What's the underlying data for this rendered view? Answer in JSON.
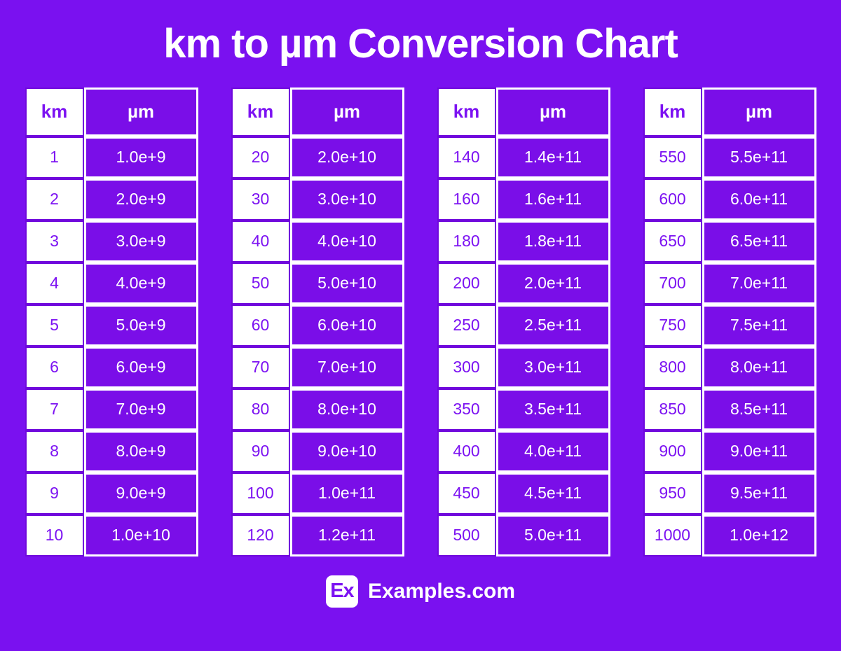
{
  "header": {
    "title": "km to µm Conversion Chart"
  },
  "footer": {
    "logo_text": "Ex",
    "site_name": "Examples.com"
  },
  "colors": {
    "page_background": "#7A11F0",
    "cell_purple": "#7A0EE8",
    "separator_purple": "#6F09DC",
    "km_text_purple": "#7C12F2",
    "text_white": "#FFFFFF"
  },
  "chart_data": {
    "type": "table",
    "title": "km to µm Conversion Chart",
    "columns": [
      "km",
      "µm"
    ],
    "tables": [
      {
        "rows": [
          [
            "1",
            "1.0e+9"
          ],
          [
            "2",
            "2.0e+9"
          ],
          [
            "3",
            "3.0e+9"
          ],
          [
            "4",
            "4.0e+9"
          ],
          [
            "5",
            "5.0e+9"
          ],
          [
            "6",
            "6.0e+9"
          ],
          [
            "7",
            "7.0e+9"
          ],
          [
            "8",
            "8.0e+9"
          ],
          [
            "9",
            "9.0e+9"
          ],
          [
            "10",
            "1.0e+10"
          ]
        ]
      },
      {
        "rows": [
          [
            "20",
            "2.0e+10"
          ],
          [
            "30",
            "3.0e+10"
          ],
          [
            "40",
            "4.0e+10"
          ],
          [
            "50",
            "5.0e+10"
          ],
          [
            "60",
            "6.0e+10"
          ],
          [
            "70",
            "7.0e+10"
          ],
          [
            "80",
            "8.0e+10"
          ],
          [
            "90",
            "9.0e+10"
          ],
          [
            "100",
            "1.0e+11"
          ],
          [
            "120",
            "1.2e+11"
          ]
        ]
      },
      {
        "rows": [
          [
            "140",
            "1.4e+11"
          ],
          [
            "160",
            "1.6e+11"
          ],
          [
            "180",
            "1.8e+11"
          ],
          [
            "200",
            "2.0e+11"
          ],
          [
            "250",
            "2.5e+11"
          ],
          [
            "300",
            "3.0e+11"
          ],
          [
            "350",
            "3.5e+11"
          ],
          [
            "400",
            "4.0e+11"
          ],
          [
            "450",
            "4.5e+11"
          ],
          [
            "500",
            "5.0e+11"
          ]
        ]
      },
      {
        "rows": [
          [
            "550",
            "5.5e+11"
          ],
          [
            "600",
            "6.0e+11"
          ],
          [
            "650",
            "6.5e+11"
          ],
          [
            "700",
            "7.0e+11"
          ],
          [
            "750",
            "7.5e+11"
          ],
          [
            "800",
            "8.0e+11"
          ],
          [
            "850",
            "8.5e+11"
          ],
          [
            "900",
            "9.0e+11"
          ],
          [
            "950",
            "9.5e+11"
          ],
          [
            "1000",
            "1.0e+12"
          ]
        ]
      }
    ]
  }
}
